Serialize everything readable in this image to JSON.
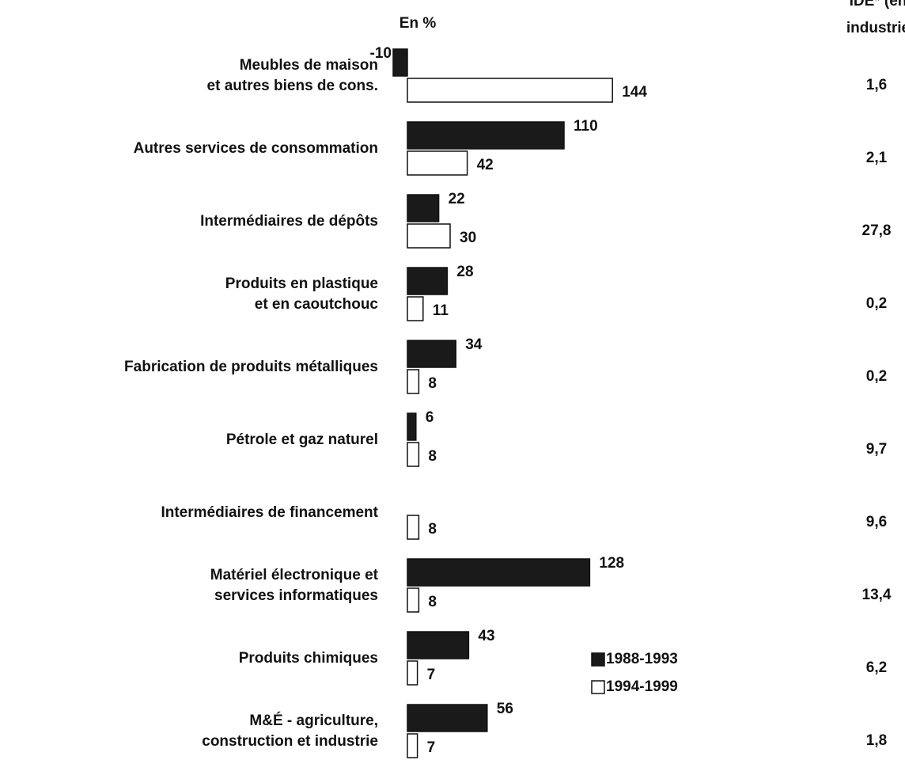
{
  "chart_data": {
    "type": "bar",
    "orientation": "horizontal",
    "subtitle": "En %",
    "side_header": [
      "IDE* (en",
      "industrie"
    ],
    "categories": [
      [
        "Meubles de maison",
        "et autres biens de cons."
      ],
      [
        "Autres services de consommation"
      ],
      [
        "Intermédiaires de dépôts"
      ],
      [
        "Produits en plastique",
        "et en caoutchouc"
      ],
      [
        "Fabrication de produits métalliques"
      ],
      [
        "Pétrole et gaz naturel"
      ],
      [
        "Intermédiaires de financement"
      ],
      [
        "Matériel électronique et",
        "services informatiques"
      ],
      [
        "Produits chimiques"
      ],
      [
        "M&É - agriculture,",
        "construction et industrie"
      ]
    ],
    "series": [
      {
        "name": "1988-1993",
        "color": "#1a1a1a",
        "values": [
          -10,
          110,
          22,
          28,
          34,
          6,
          null,
          128,
          43,
          56
        ]
      },
      {
        "name": "1994-1999",
        "color": "#ffffff",
        "values": [
          144,
          42,
          30,
          11,
          8,
          8,
          8,
          8,
          7,
          7
        ]
      }
    ],
    "side_values": [
      1.6,
      2.1,
      27.8,
      0.2,
      0.2,
      9.7,
      9.6,
      13.4,
      6.2,
      1.8
    ],
    "side_value_labels": [
      "1,6",
      "2,1",
      "27,8",
      "0,2",
      "0,2",
      "9,7",
      "9,6",
      "13,4",
      "6,2",
      "1,8"
    ]
  }
}
